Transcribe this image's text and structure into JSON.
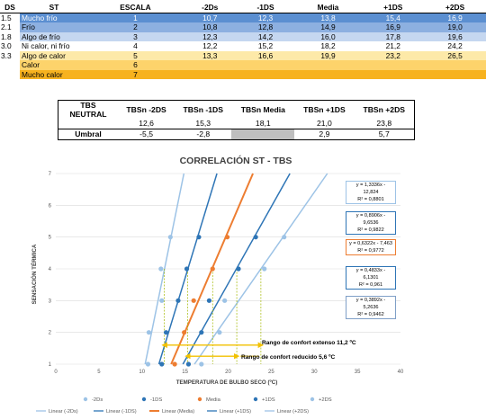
{
  "top_table": {
    "headers": [
      "DS",
      "ST",
      "ESCALA",
      "-2Ds",
      "-1DS",
      "Media",
      "+1DS",
      "+2DS"
    ],
    "rows": [
      {
        "ds": "1.5",
        "st": "Mucho frío",
        "escala": "1",
        "v": [
          "10,7",
          "12,3",
          "13,8",
          "15,4",
          "16,9"
        ],
        "bg": "#5b8fd1",
        "color": "#ffffff"
      },
      {
        "ds": "2.1",
        "st": "Frío",
        "escala": "2",
        "v": [
          "10,8",
          "12,8",
          "14,9",
          "16,9",
          "19,0"
        ],
        "bg": "#8db0e0",
        "color": "#000000"
      },
      {
        "ds": "1.8",
        "st": "Algo de frío",
        "escala": "3",
        "v": [
          "12,3",
          "14,2",
          "16,0",
          "17,8",
          "19,6"
        ],
        "bg": "#c5d7f0",
        "color": "#000000"
      },
      {
        "ds": "3.0",
        "st": "Ni calor, ni frío",
        "escala": "4",
        "v": [
          "12,2",
          "15,2",
          "18,2",
          "21,2",
          "24,2"
        ],
        "bg": "#ffffff",
        "color": "#000000"
      },
      {
        "ds": "3.3",
        "st": "Algo de calor",
        "escala": "5",
        "v": [
          "13,3",
          "16,6",
          "19,9",
          "23,2",
          "26,5"
        ],
        "bg": "#fde9a8",
        "color": "#000000"
      },
      {
        "ds": "",
        "st": "Calor",
        "escala": "6",
        "v": [
          "",
          "",
          "",
          "",
          ""
        ],
        "bg": "#fdd36b",
        "color": "#000000"
      },
      {
        "ds": "",
        "st": "Mucho calor",
        "escala": "7",
        "v": [
          "",
          "",
          "",
          "",
          ""
        ],
        "bg": "#f7b21f",
        "color": "#000000"
      }
    ]
  },
  "neutral_table": {
    "headers": [
      "TBS\nNEUTRAL",
      "TBSn -2DS",
      "TBSn -1DS",
      "TBSn Media",
      "TBSn +1DS",
      "TBSn +2DS"
    ],
    "values_row": [
      "",
      "12,6",
      "15,3",
      "18,1",
      "21,0",
      "23,8"
    ],
    "umbral_label": "Umbral",
    "umbral_row": [
      "-5,5",
      "-2,8",
      "",
      "2,9",
      "5,7"
    ]
  },
  "chart_data": {
    "type": "scatter",
    "title": "CORRELACIÓN ST - TBS",
    "xlabel": "TEMPERATURA DE BULBO SECO (ºC)",
    "ylabel": "SENSACIÓN TÉRMICA",
    "xlim": [
      0,
      40
    ],
    "ylim": [
      1,
      7
    ],
    "xticks": [
      0,
      5,
      10,
      15,
      20,
      25,
      30,
      35,
      40
    ],
    "yticks": [
      1,
      2,
      3,
      4,
      5,
      6,
      7
    ],
    "grid": true,
    "legend_position": "bottom",
    "series": [
      {
        "name": "-2Ds",
        "color": "#9dc3e6",
        "y": [
          1,
          2,
          3,
          4,
          5
        ],
        "x": [
          10.7,
          10.8,
          12.3,
          12.2,
          13.3
        ],
        "slope": 1.3336,
        "intercept": -12.824,
        "equation": "y = 1,3336x - 12,824",
        "r2": "R² = 0,8801",
        "box_color": "#9dc3e6"
      },
      {
        "name": "-1DS",
        "color": "#2e75b6",
        "y": [
          1,
          2,
          3,
          4,
          5
        ],
        "x": [
          12.3,
          12.8,
          14.2,
          15.2,
          16.6
        ],
        "slope": 0.8906,
        "intercept": -9.6536,
        "equation": "y = 0,8906x - 9,6536",
        "r2": "R² = 0,9822",
        "box_color": "#2e75b6"
      },
      {
        "name": "Media",
        "color": "#ed7d31",
        "y": [
          1,
          2,
          3,
          4,
          5
        ],
        "x": [
          13.8,
          14.9,
          16.0,
          18.2,
          19.9
        ],
        "slope": 0.6322,
        "intercept": -7.463,
        "equation": "y = 0,6322x - 7,463",
        "r2": "R² = 0,9772",
        "box_color": "#ed7d31"
      },
      {
        "name": "+1DS",
        "color": "#2e75b6",
        "y": [
          1,
          2,
          3,
          4,
          5
        ],
        "x": [
          15.4,
          16.9,
          17.8,
          21.2,
          23.2
        ],
        "slope": 0.4833,
        "intercept": -6.1301,
        "equation": "y = 0,4833x - 6,1301",
        "r2": "R² = 0,961",
        "box_color": "#2e75b6"
      },
      {
        "name": "+2DS",
        "color": "#9dc3e6",
        "y": [
          1,
          2,
          3,
          4,
          5
        ],
        "x": [
          16.9,
          19.0,
          19.6,
          24.2,
          26.5
        ],
        "slope": 0.3892,
        "intercept": -5.2636,
        "equation": "y = 0,3892x - 5,2636",
        "r2": "R² = 0,9462",
        "box_color": "#7f9fc7"
      }
    ],
    "trend_legend": [
      "Linear (-2Ds)",
      "Linear (-1DS)",
      "Linear (Media)",
      "Linear (+1DS)",
      "Linear (+2DS)"
    ],
    "annotations": {
      "extenso_label": "Rango de confort extenso 11,2 ºC",
      "reducido_label": "Rango de confort reducido 5,6 ºC",
      "extenso_range": [
        12.6,
        23.8
      ],
      "reducido_range": [
        15.3,
        21.0
      ],
      "arrow_color": "#f2c100"
    }
  }
}
